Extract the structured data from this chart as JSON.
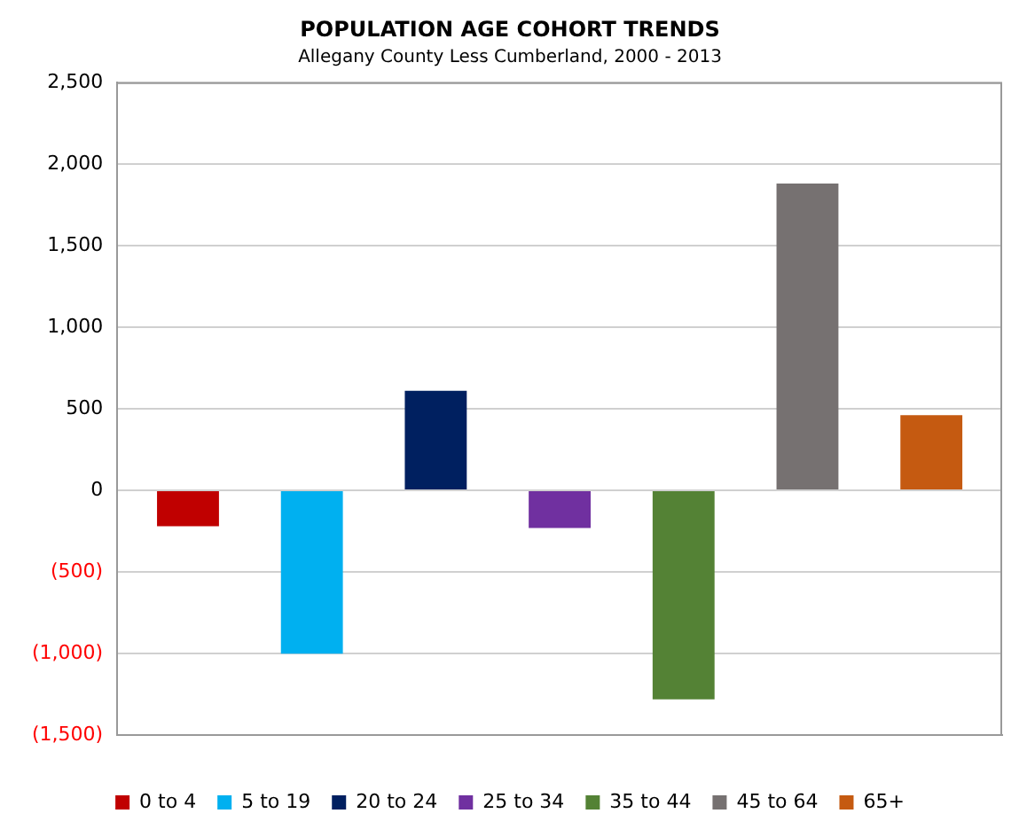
{
  "chart_data": {
    "type": "bar",
    "title": "POPULATION AGE COHORT TRENDS",
    "subtitle": "Allegany County Less Cumberland, 2000 - 2013",
    "categories": [
      null
    ],
    "series": [
      {
        "name": "0 to 4",
        "color": "#c00000",
        "values": [
          -220
        ]
      },
      {
        "name": "5 to 19",
        "color": "#00b0f0",
        "values": [
          -1000
        ]
      },
      {
        "name": "20 to 24",
        "color": "#002060",
        "values": [
          610
        ]
      },
      {
        "name": "25 to 34",
        "color": "#7030a0",
        "values": [
          -230
        ]
      },
      {
        "name": "35 to 44",
        "color": "#548235",
        "values": [
          -1280
        ]
      },
      {
        "name": "45 to 64",
        "color": "#767171",
        "values": [
          1880
        ]
      },
      {
        "name": "65+",
        "color": "#c55a11",
        "values": [
          460
        ]
      }
    ],
    "ylim": [
      -1500,
      2500
    ],
    "yticks": [
      {
        "value": -1500,
        "label": "(1,500)"
      },
      {
        "value": -1000,
        "label": "(1,000)"
      },
      {
        "value": -500,
        "label": "(500)"
      },
      {
        "value": 0,
        "label": "0"
      },
      {
        "value": 500,
        "label": "500"
      },
      {
        "value": 1000,
        "label": "1,000"
      },
      {
        "value": 1500,
        "label": "1,500"
      },
      {
        "value": 2000,
        "label": "2,000"
      },
      {
        "value": 2500,
        "label": "2,500"
      }
    ],
    "grid": "y",
    "legend": "bottom"
  }
}
